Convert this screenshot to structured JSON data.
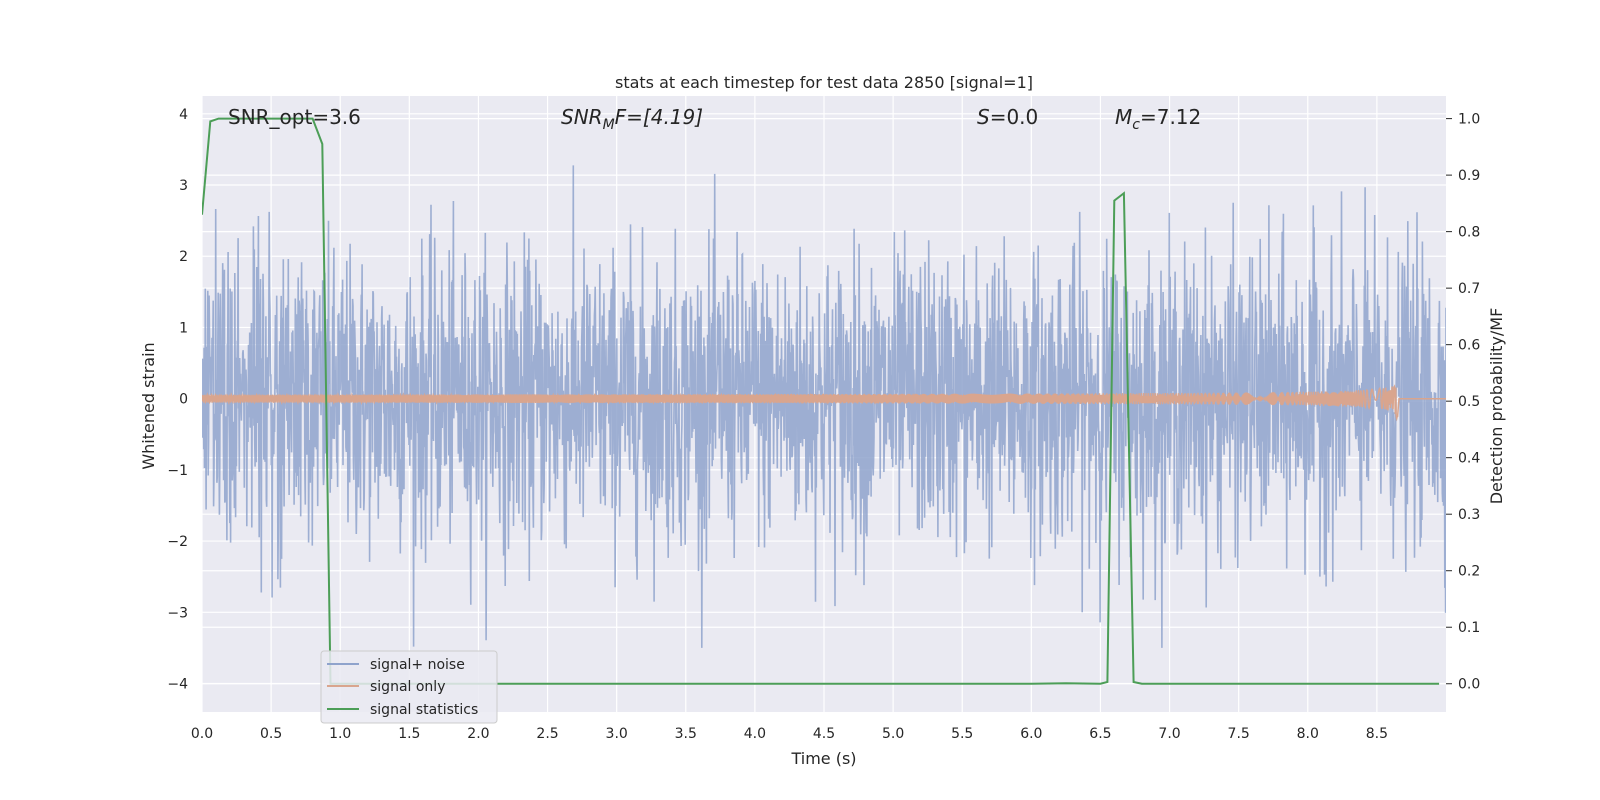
{
  "chart_data": {
    "type": "line",
    "title": "stats at each timestep for test data 2850 [signal=1]",
    "xlabel": "Time (s)",
    "ylabel_left": "Whitened strain",
    "ylabel_right": "Detection probability/MF",
    "xlim": [
      0,
      9.0
    ],
    "ylim_left": [
      -4.4,
      4.25
    ],
    "ylim_right": [
      -0.05,
      1.04
    ],
    "x_ticks": [
      "0.0",
      "0.5",
      "1.0",
      "1.5",
      "2.0",
      "2.5",
      "3.0",
      "3.5",
      "4.0",
      "4.5",
      "5.0",
      "5.5",
      "6.0",
      "6.5",
      "7.0",
      "7.5",
      "8.0",
      "8.5"
    ],
    "x_tick_values": [
      0,
      0.5,
      1,
      1.5,
      2,
      2.5,
      3,
      3.5,
      4,
      4.5,
      5,
      5.5,
      6,
      6.5,
      7,
      7.5,
      8,
      8.5
    ],
    "y_ticks_left": [
      "−4",
      "−3",
      "−2",
      "−1",
      "0",
      "1",
      "2",
      "3",
      "4"
    ],
    "y_tick_values_left": [
      -4,
      -3,
      -2,
      -1,
      0,
      1,
      2,
      3,
      4
    ],
    "y_ticks_right": [
      "0.0",
      "0.1",
      "0.2",
      "0.3",
      "0.4",
      "0.5",
      "0.6",
      "0.7",
      "0.8",
      "0.9",
      "1.0"
    ],
    "y_tick_values_right": [
      0,
      0.1,
      0.2,
      0.3,
      0.4,
      0.5,
      0.6,
      0.7,
      0.8,
      0.9,
      1.0
    ],
    "grid": true,
    "legend_position": "lower-left",
    "annotations": {
      "snr_opt": "SNR_opt=3.6",
      "snr_mf_main": "SNR",
      "snr_mf_sub": "M",
      "snr_mf_rest": "F=[4.19]",
      "s_main": "S",
      "s_rest": "=0.0",
      "mc_main": "M",
      "mc_sub": "c",
      "mc_rest": "=7.12"
    },
    "series": [
      {
        "name": "signal+ noise",
        "color": "#8fa3cc",
        "axis": "left",
        "description": "whitened strain noise, values roughly within [-3.5, 3.9]"
      },
      {
        "name": "signal only",
        "color": "#d9a58e",
        "axis": "left",
        "chirp_end_x": 8.65,
        "chirp_peak_amplitude": 0.35
      },
      {
        "name": "signal statistics",
        "color": "#4c9e57",
        "axis": "right",
        "x": [
          0.0,
          0.06,
          0.12,
          0.3,
          0.5,
          0.7,
          0.8,
          0.87,
          0.93,
          1.0,
          1.5,
          2.0,
          3.0,
          4.0,
          5.0,
          6.0,
          6.25,
          6.5,
          6.55,
          6.6,
          6.67,
          6.74,
          6.8,
          7.0,
          8.0,
          8.95
        ],
        "values": [
          0.83,
          0.995,
          1.0,
          1.0,
          1.0,
          1.0,
          1.0,
          0.955,
          0.0,
          0.0,
          0.0,
          0.0,
          0.0,
          0.0,
          0.0,
          0.0,
          0.001,
          0.0,
          0.003,
          0.855,
          0.868,
          0.003,
          0.0,
          0.0,
          0.0,
          0.0
        ]
      }
    ]
  },
  "colors": {
    "plot_background": "#eaeaf2",
    "grid": "#ffffff",
    "noise": "#8fa3cc",
    "signal": "#d9a58e",
    "statistics": "#4c9e57"
  }
}
